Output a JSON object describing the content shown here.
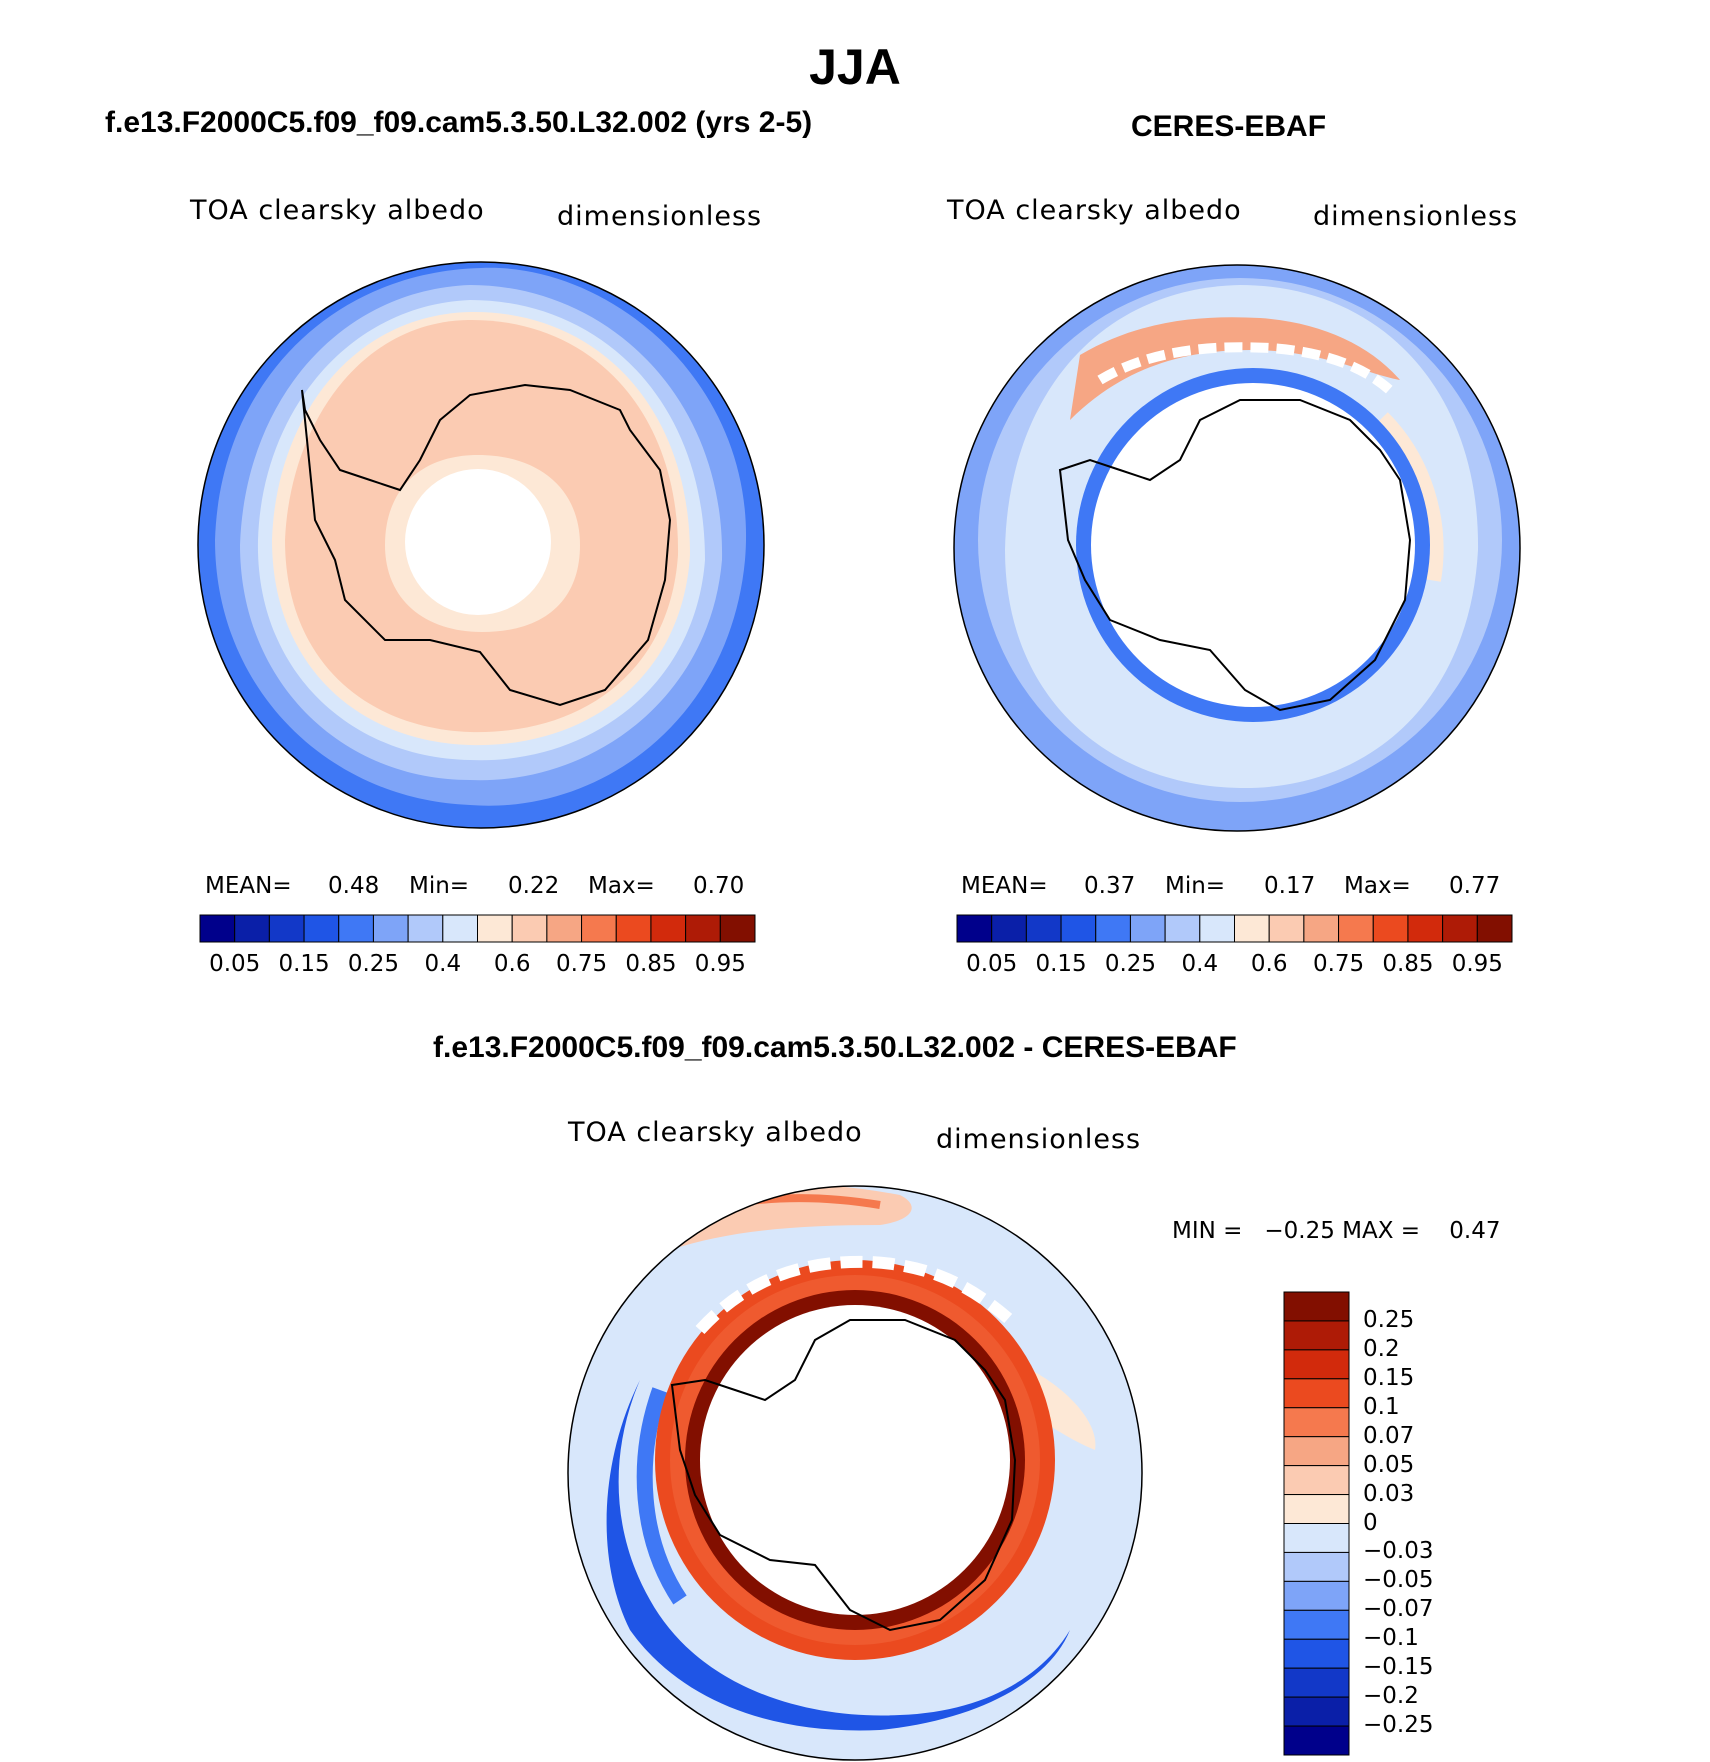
{
  "title": "JJA",
  "panels": [
    {
      "case_title": "f.e13.F2000C5.f09_f09.cam5.3.50.L32.002 (yrs 2-5)",
      "variable": "TOA clearsky albedo",
      "units": "dimensionless",
      "stats": {
        "mean_label": "MEAN=",
        "mean": "0.48",
        "min_label": "Min=",
        "min": "0.22",
        "max_label": "Max=",
        "max": "0.70"
      }
    },
    {
      "case_title": "CERES-EBAF",
      "variable": "TOA clearsky albedo",
      "units": "dimensionless",
      "stats": {
        "mean_label": "MEAN=",
        "mean": "0.37",
        "min_label": "Min=",
        "min": "0.17",
        "max_label": "Max=",
        "max": "0.77"
      }
    },
    {
      "case_title": "f.e13.F2000C5.f09_f09.cam5.3.50.L32.002 - CERES-EBAF",
      "variable": "TOA clearsky albedo",
      "units": "dimensionless",
      "minmax": "MIN =   −0.25 MAX =    0.47"
    }
  ],
  "abs_colorbar": {
    "colors": [
      "#00008b",
      "#0a1fa8",
      "#1238c8",
      "#1f55e6",
      "#3f78f5",
      "#7ea4f8",
      "#b1c9fa",
      "#d8e7fb",
      "#fde8d6",
      "#fbcbb2",
      "#f6a684",
      "#f5794e",
      "#eb4a1f",
      "#d22a0c",
      "#ae1b06",
      "#820f00"
    ],
    "labels": [
      "0.05",
      "0.15",
      "0.25",
      "0.4",
      "0.6",
      "0.75",
      "0.85",
      "0.95"
    ]
  },
  "diff_colorbar": {
    "colors": [
      "#820f00",
      "#ae1b06",
      "#d22a0c",
      "#eb4a1f",
      "#f5794e",
      "#f6a684",
      "#fbcbb2",
      "#fde8d6",
      "#d8e7fb",
      "#b1c9fa",
      "#7ea4f8",
      "#3f78f5",
      "#1f55e6",
      "#1238c8",
      "#0a1fa8",
      "#00008b"
    ],
    "labels": [
      "0.25",
      "0.2",
      "0.15",
      "0.1",
      "0.07",
      "0.05",
      "0.03",
      "0",
      "−0.03",
      "−0.05",
      "−0.07",
      "−0.1",
      "−0.15",
      "−0.2",
      "−0.25"
    ]
  }
}
